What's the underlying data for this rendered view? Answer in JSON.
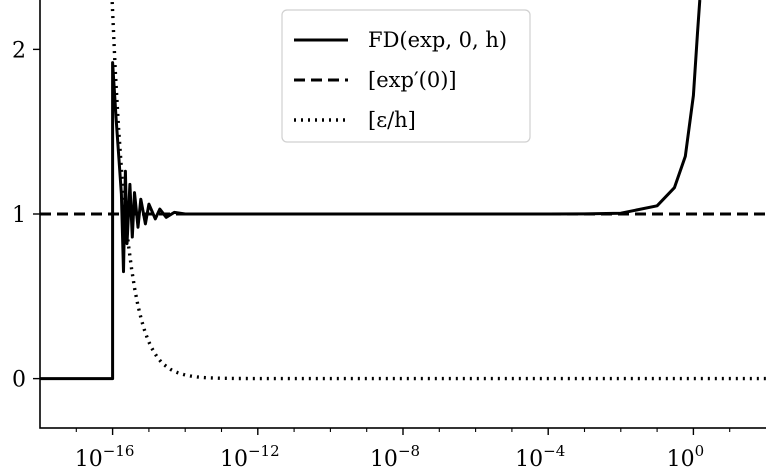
{
  "chart_data": {
    "type": "line",
    "title": "",
    "xlabel": "",
    "ylabel": "",
    "x_scale": "log",
    "xlim": [
      "1e-18",
      "1e+2"
    ],
    "ylim": [
      -0.3,
      2.3
    ],
    "grid": false,
    "legend_position": "top-center",
    "x_ticks": [
      {
        "base": "10",
        "exp": "−16"
      },
      {
        "base": "10",
        "exp": "−12"
      },
      {
        "base": "10",
        "exp": "−8"
      },
      {
        "base": "10",
        "exp": "−4"
      },
      {
        "base": "10",
        "exp": "0"
      }
    ],
    "y_ticks": [
      "0",
      "1",
      "2"
    ],
    "series": [
      {
        "name": "FD(exp, 0, h)",
        "style": "solid",
        "color": "#000000",
        "description_points": {
          "x": [
            "1e-18",
            "1e-16",
            "1.0e-16",
            "1.25e-16",
            "1.5e-16",
            "1.75e-16",
            "2e-16",
            "2.25e-16",
            "2.5e-16",
            "3e-16",
            "3.5e-16",
            "4e-16",
            "5e-16",
            "6e-16",
            "8e-16",
            "1e-15",
            "1.5e-15",
            "2e-15",
            "3e-15",
            "5e-15",
            "1e-14",
            "1e-13",
            "1e-8",
            "1e-4",
            "1e-3",
            "1e-2",
            "1e-1",
            "0.3",
            "0.6",
            "1",
            "1.3",
            "1.5"
          ],
          "y": [
            0,
            0,
            1.92,
            1.58,
            1.33,
            1.12,
            0.65,
            1.26,
            0.82,
            1.18,
            0.86,
            1.13,
            0.92,
            1.09,
            0.94,
            1.06,
            0.97,
            1.03,
            0.98,
            1.01,
            1.0,
            1.0,
            1.0,
            1.0,
            1.0005,
            1.005,
            1.05,
            1.16,
            1.35,
            1.72,
            2.1,
            2.3
          ]
        }
      },
      {
        "name": "[exp′(0)]",
        "style": "dashed",
        "color": "#000000",
        "constant_y": 1
      },
      {
        "name": "[ε/h]",
        "style": "dotted",
        "color": "#000000",
        "formula": "2.22e-16 / h",
        "x_range": [
          "9.6e-17",
          "1e+2"
        ]
      }
    ]
  }
}
